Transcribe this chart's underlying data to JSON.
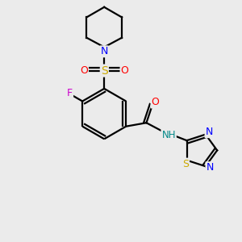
{
  "background_color": "#ebebeb",
  "atom_colors": {
    "C": "#000000",
    "N": "#0000ff",
    "O": "#ff0000",
    "F": "#cc00cc",
    "S": "#ccaa00",
    "H": "#008888"
  },
  "bond_color": "#000000",
  "bond_width": 1.6,
  "figsize": [
    3.0,
    3.0
  ],
  "dpi": 100
}
